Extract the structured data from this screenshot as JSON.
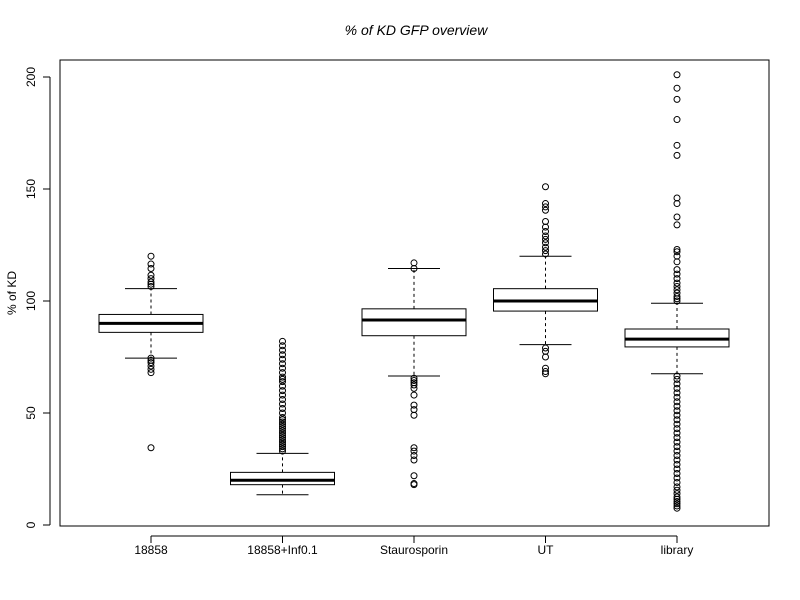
{
  "chart_data": {
    "type": "boxplot",
    "title": "% of KD GFP overview",
    "xlabel": "",
    "ylabel": "% of KD",
    "ylim": [
      0,
      200
    ],
    "yticks": [
      0,
      50,
      100,
      150,
      200
    ],
    "grid": false,
    "legend": "none",
    "colors": {
      "stroke": "#000000",
      "box_fill": "#ffffff",
      "background": "#ffffff"
    },
    "categories": [
      "18858",
      "18858+Inf0.1",
      "Staurosporin",
      "UT",
      "library"
    ],
    "series": [
      {
        "category": "18858",
        "lower_whisker": 74.5,
        "q1": 86,
        "median": 90,
        "q3": 94,
        "upper_whisker": 105.5,
        "outliers": [
          34.5,
          68,
          69.5,
          71,
          72.5,
          73.5,
          74.5,
          106.5,
          107.5,
          108.5,
          110,
          111.5,
          114.5,
          116.5,
          120
        ]
      },
      {
        "category": "18858+Inf0.1",
        "lower_whisker": 13.5,
        "q1": 18,
        "median": 20,
        "q3": 23.5,
        "upper_whisker": 32,
        "outliers": [
          33,
          34,
          35,
          36,
          37,
          38,
          39,
          40,
          41,
          42,
          43,
          44,
          45,
          46,
          47,
          48,
          50,
          52,
          54,
          56,
          58,
          60,
          62,
          64,
          65,
          66,
          68,
          70,
          72,
          74,
          76,
          78,
          80,
          82
        ]
      },
      {
        "category": "Staurosporin",
        "lower_whisker": 66.5,
        "q1": 84.5,
        "median": 91.5,
        "q3": 96.5,
        "upper_whisker": 114.5,
        "outliers": [
          18,
          18.5,
          22,
          29,
          31,
          33,
          34.5,
          49,
          51.5,
          53.5,
          58,
          61,
          62.5,
          63.5,
          64.5,
          65.5,
          114.5,
          117
        ]
      },
      {
        "category": "UT",
        "lower_whisker": 80.5,
        "q1": 95.5,
        "median": 100,
        "q3": 105.5,
        "upper_whisker": 120,
        "outliers": [
          67.5,
          68.5,
          70,
          75,
          77.5,
          79,
          121,
          122.5,
          124,
          126,
          127.5,
          129,
          131,
          133,
          135.5,
          140.5,
          142,
          143.5,
          151
        ]
      },
      {
        "category": "library",
        "lower_whisker": 67.5,
        "q1": 79.5,
        "median": 83,
        "q3": 87.5,
        "upper_whisker": 99,
        "outliers": [
          7.5,
          8.5,
          9.5,
          10.5,
          11.5,
          12.5,
          14,
          15.5,
          17,
          19,
          21,
          23,
          25,
          27,
          29,
          31,
          33,
          35,
          37,
          39,
          41,
          43,
          45,
          47,
          49,
          51,
          53,
          55,
          57,
          59,
          61,
          63,
          65,
          66.5,
          100,
          101,
          102,
          103.5,
          105,
          106.5,
          108,
          110,
          112,
          114,
          117.5,
          120,
          122,
          123,
          134,
          137.5,
          143.5,
          146,
          165,
          169.5,
          181,
          190,
          195,
          201
        ]
      }
    ]
  }
}
